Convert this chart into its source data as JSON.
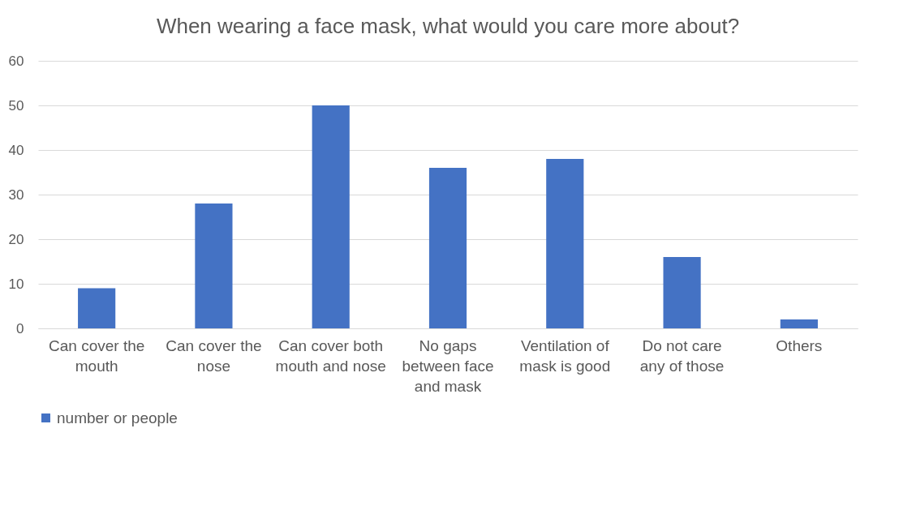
{
  "chart_data": {
    "type": "bar",
    "title": "When wearing a face mask, what would you care more about?",
    "categories": [
      "Can cover the mouth",
      "Can cover the nose",
      "Can cover both mouth and nose",
      "No gaps between face and mask",
      "Ventilation of mask is good",
      "Do not care any of those",
      "Others"
    ],
    "series": [
      {
        "name": "number or people",
        "color": "#4472c4",
        "values": [
          9,
          28,
          50,
          36,
          38,
          16,
          2
        ]
      }
    ],
    "ylim": [
      0,
      60
    ],
    "yticks": [
      0,
      10,
      20,
      30,
      40,
      50,
      60
    ],
    "grid": "y",
    "legend": "bottom"
  }
}
